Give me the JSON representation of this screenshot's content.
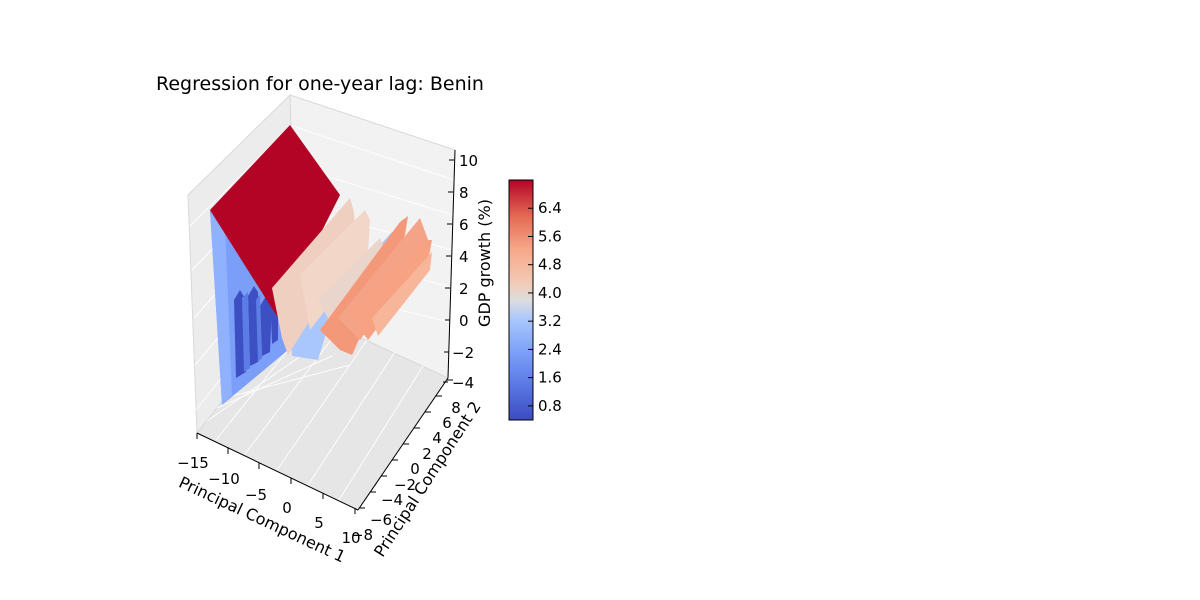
{
  "chart_data": {
    "type": "surface3d",
    "title": "Regression for one-year lag: Benin",
    "xlabel": "Principal Component 1",
    "ylabel": "Principal Component 2",
    "zlabel": "GDP growth (%)",
    "xlim": [
      -15,
      10
    ],
    "ylim": [
      -8,
      8
    ],
    "zlim": [
      -4,
      10
    ],
    "x_ticks": [
      "−15",
      "−10",
      "−5",
      "0",
      "5",
      "10"
    ],
    "y_ticks": [
      "−8",
      "−6",
      "−4",
      "−2",
      "0",
      "2",
      "4",
      "6",
      "8"
    ],
    "z_ticks": [
      "−4",
      "−2",
      "0",
      "2",
      "4",
      "6",
      "8",
      "10"
    ],
    "colormap": "coolwarm",
    "colorbar": {
      "range": [
        0.4,
        7.2
      ],
      "ticks": [
        "0.8",
        "1.6",
        "2.4",
        "3.2",
        "4.0",
        "4.8",
        "5.6",
        "6.4"
      ],
      "tick_values": [
        0.8,
        1.6,
        2.4,
        3.2,
        4.0,
        4.8,
        5.6,
        6.4
      ]
    },
    "surface_regions": [
      {
        "region": "top plateau",
        "z": 7.1,
        "color": "#b40426"
      },
      {
        "region": "left wall",
        "z": 1.9,
        "color": "#7b9ff9"
      },
      {
        "region": "deep ridges",
        "z": 0.6,
        "color": "#3d50c3"
      },
      {
        "region": "pale ridges",
        "z": 4.5,
        "color": "#efcfbf"
      },
      {
        "region": "salmon ridges",
        "z": 5.6,
        "color": "#f4987a"
      }
    ],
    "grid": true
  }
}
